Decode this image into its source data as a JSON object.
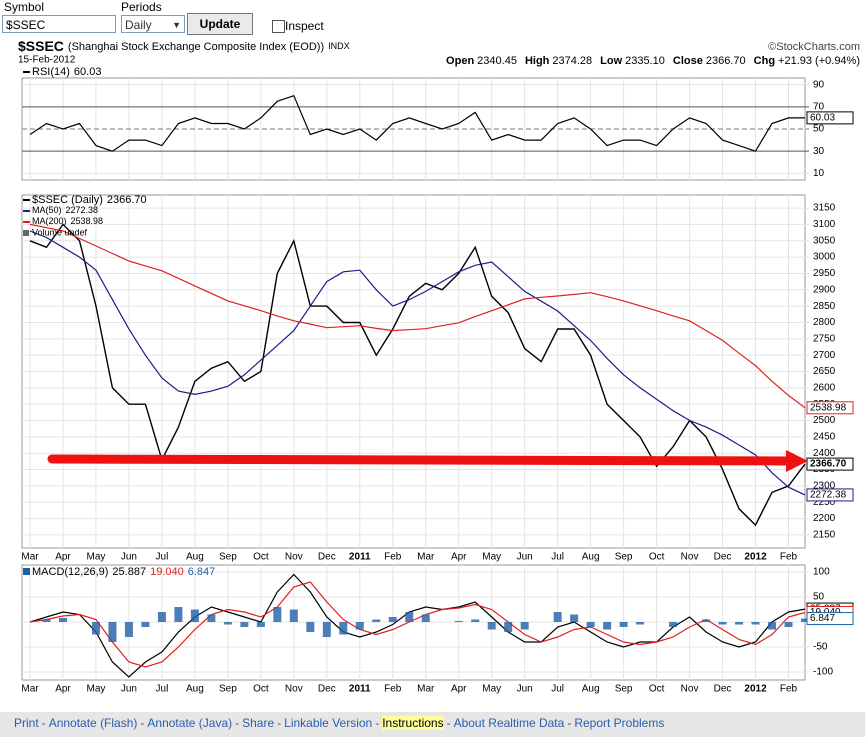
{
  "form": {
    "symbol_label": "Symbol",
    "symbol_value": "$SSEC",
    "periods_label": "Periods",
    "periods_value": "Daily",
    "update_button": "Update",
    "inspect_label": "Inspect"
  },
  "header": {
    "symbol": "$SSEC",
    "name": "(Shanghai Stock Exchange Composite Index (EOD))",
    "exchange": "INDX",
    "date": "15-Feb-2012",
    "source": "©StockCharts.com",
    "quote": [
      {
        "label": "Open",
        "value": "2340.45"
      },
      {
        "label": "High",
        "value": "2374.28"
      },
      {
        "label": "Low",
        "value": "2335.10"
      },
      {
        "label": "Close",
        "value": "2366.70"
      },
      {
        "label": "Chg",
        "value": "+21.93 (+0.94%)"
      }
    ]
  },
  "chart_data": [
    {
      "type": "line",
      "show_xticklabels": false,
      "categories": [
        "Mar",
        null,
        "Apr",
        null,
        "May",
        null,
        "Jun",
        null,
        "Jul",
        null,
        "Aug",
        null,
        "Sep",
        null,
        "Oct",
        null,
        "Nov",
        null,
        "Dec",
        null,
        "2011",
        null,
        "Feb",
        null,
        "Mar",
        null,
        "Apr",
        null,
        "May",
        null,
        "Jun",
        null,
        "Jul",
        null,
        "Aug",
        null,
        "Sep",
        null,
        "Oct",
        null,
        "Nov",
        null,
        "Dec",
        null,
        "2012",
        null,
        "Feb",
        null
      ],
      "series": [
        {
          "name": "RSI(14)",
          "color": "#000000",
          "values": [
            45,
            55,
            50,
            55,
            35,
            30,
            40,
            40,
            35,
            55,
            60,
            55,
            55,
            50,
            60,
            75,
            80,
            45,
            50,
            45,
            50,
            40,
            55,
            60,
            55,
            50,
            55,
            65,
            40,
            45,
            40,
            40,
            55,
            60,
            50,
            35,
            40,
            40,
            35,
            50,
            60,
            55,
            40,
            35,
            30,
            55,
            60,
            60.03
          ]
        }
      ],
      "ylim": [
        4,
        96
      ],
      "yticks": [
        10,
        30,
        50,
        70,
        90
      ],
      "grid": true,
      "hlines": [
        30,
        70
      ],
      "dashed_hlines": [
        50
      ]
    },
    {
      "type": "line",
      "show_xticklabels": true,
      "categories": [
        "Mar",
        null,
        "Apr",
        null,
        "May",
        null,
        "Jun",
        null,
        "Jul",
        null,
        "Aug",
        null,
        "Sep",
        null,
        "Oct",
        null,
        "Nov",
        null,
        "Dec",
        null,
        "2011",
        null,
        "Feb",
        null,
        "Mar",
        null,
        "Apr",
        null,
        "May",
        null,
        "Jun",
        null,
        "Jul",
        null,
        "Aug",
        null,
        "Sep",
        null,
        "Oct",
        null,
        "Nov",
        null,
        "Dec",
        null,
        "2012",
        null,
        "Feb",
        null
      ],
      "series": [
        {
          "name": "$SSEC (Daily)",
          "color": "#000000",
          "values": [
            3050,
            3030,
            3100,
            3050,
            2850,
            2600,
            2550,
            2550,
            2380,
            2480,
            2620,
            2660,
            2680,
            2620,
            2650,
            2950,
            3050,
            2850,
            2850,
            2800,
            2800,
            2700,
            2780,
            2880,
            2920,
            2900,
            2950,
            3030,
            2880,
            2830,
            2720,
            2680,
            2780,
            2780,
            2700,
            2550,
            2500,
            2450,
            2360,
            2420,
            2500,
            2450,
            2350,
            2230,
            2180,
            2280,
            2300,
            2366.7
          ],
          "value_labels": [
            null,
            null,
            null,
            null,
            null,
            null,
            null,
            null,
            null,
            null,
            null,
            null,
            null,
            null,
            null,
            null,
            null,
            null,
            null,
            null,
            null,
            null,
            null,
            null,
            null,
            null,
            null,
            null,
            null,
            null,
            null,
            null,
            null,
            null,
            null,
            null,
            null,
            null,
            null,
            null,
            null,
            null,
            null,
            null,
            null,
            null,
            null,
            "2366.70"
          ]
        },
        {
          "name": "MA(50)",
          "color": "#1c1c8c",
          "values": [
            3080,
            3060,
            3030,
            3000,
            2960,
            2870,
            2780,
            2700,
            2630,
            2590,
            2580,
            2590,
            2605,
            2640,
            2685,
            2730,
            2775,
            2850,
            2925,
            2955,
            2960,
            2900,
            2850,
            2870,
            2895,
            2925,
            2955,
            2975,
            2985,
            2940,
            2895,
            2865,
            2835,
            2790,
            2745,
            2690,
            2640,
            2600,
            2565,
            2530,
            2500,
            2480,
            2455,
            2425,
            2395,
            2340,
            2296,
            2272.38
          ]
        },
        {
          "name": "MA(200)",
          "color": "#e02020",
          "values": [
            3100,
            3090,
            3080,
            3057,
            3034,
            3011,
            2988,
            2973,
            2958,
            2935,
            2912,
            2889,
            2866,
            2851,
            2836,
            2820,
            2805,
            2795,
            2784,
            2787,
            2790,
            2782,
            2775,
            2778,
            2781,
            2790,
            2799,
            2818,
            2836,
            2854,
            2872,
            2877,
            2881,
            2886,
            2891,
            2879,
            2866,
            2851,
            2836,
            2820,
            2805,
            2775,
            2745,
            2706,
            2668,
            2620,
            2577,
            2538.98
          ]
        }
      ],
      "annotations": [
        "Volume undef"
      ],
      "ylim": [
        2110,
        3190
      ],
      "yticks": [
        2150,
        2200,
        2250,
        2300,
        2350,
        2400,
        2450,
        2500,
        2550,
        2600,
        2650,
        2700,
        2750,
        2800,
        2850,
        2900,
        2950,
        3000,
        3050,
        3100,
        3150
      ],
      "grid": true
    },
    {
      "type": "line",
      "show_xticklabels": true,
      "title": "MACD(12,26,9)",
      "categories": [
        "Mar",
        null,
        "Apr",
        null,
        "May",
        null,
        "Jun",
        null,
        "Jul",
        null,
        "Aug",
        null,
        "Sep",
        null,
        "Oct",
        null,
        "Nov",
        null,
        "Dec",
        null,
        "2011",
        null,
        "Feb",
        null,
        "Mar",
        null,
        "Apr",
        null,
        "May",
        null,
        "Jun",
        null,
        "Jul",
        null,
        "Aug",
        null,
        "Sep",
        null,
        "Oct",
        null,
        "Nov",
        null,
        "Dec",
        null,
        "2012",
        null,
        "Feb",
        null
      ],
      "series": [
        {
          "color": "#000000",
          "values": [
            0,
            10,
            20,
            15,
            -20,
            -80,
            -110,
            -80,
            -60,
            -20,
            10,
            30,
            20,
            10,
            0,
            60,
            95,
            60,
            10,
            -20,
            -30,
            -20,
            -5,
            20,
            30,
            25,
            30,
            40,
            10,
            -20,
            -40,
            -40,
            -10,
            0,
            -20,
            -40,
            -50,
            -40,
            -40,
            -10,
            10,
            -20,
            -40,
            -50,
            -40,
            0,
            20,
            25.887
          ]
        },
        {
          "color": "#e02020",
          "values": [
            0,
            5,
            12,
            15,
            5,
            -40,
            -80,
            -90,
            -80,
            -50,
            -15,
            15,
            25,
            20,
            10,
            30,
            70,
            80,
            40,
            5,
            -15,
            -25,
            -15,
            0,
            15,
            25,
            28,
            35,
            25,
            0,
            -25,
            -40,
            -30,
            -15,
            -10,
            -25,
            -40,
            -45,
            -40,
            -30,
            -10,
            5,
            -15,
            -35,
            -45,
            -25,
            10,
            19.04
          ],
          "value_labels": [
            null,
            null,
            null,
            null,
            null,
            null,
            null,
            null,
            null,
            null,
            null,
            null,
            null,
            null,
            null,
            null,
            null,
            null,
            null,
            null,
            null,
            null,
            null,
            null,
            null,
            null,
            null,
            null,
            null,
            null,
            null,
            null,
            null,
            null,
            null,
            null,
            null,
            null,
            null,
            null,
            null,
            null,
            null,
            null,
            null,
            null,
            null,
            "19.040"
          ]
        },
        {
          "color": "#1f5fa8",
          "style": "bar",
          "values": [
            0,
            5,
            8,
            0,
            -25,
            -40,
            -30,
            -10,
            20,
            30,
            25,
            15,
            -5,
            -10,
            -10,
            30,
            25,
            -20,
            -30,
            -25,
            -15,
            5,
            10,
            20,
            15,
            0,
            2,
            5,
            -15,
            -20,
            -15,
            0,
            20,
            15,
            -10,
            -15,
            -10,
            -5,
            0,
            -10,
            0,
            5,
            -5,
            -5,
            -5,
            -15,
            -10,
            6.847
          ]
        }
      ],
      "ylim": [
        -116,
        114
      ],
      "yticks": [
        -100,
        -50,
        0,
        50,
        100
      ],
      "grid": true
    }
  ],
  "footer": {
    "separator": "-",
    "links": [
      "Print",
      "Annotate (Flash)",
      "Annotate (Java)",
      "Share",
      "Linkable Version",
      "Instructions",
      "About Realtime Data",
      "Report Problems"
    ],
    "highlighted": "Instructions"
  }
}
